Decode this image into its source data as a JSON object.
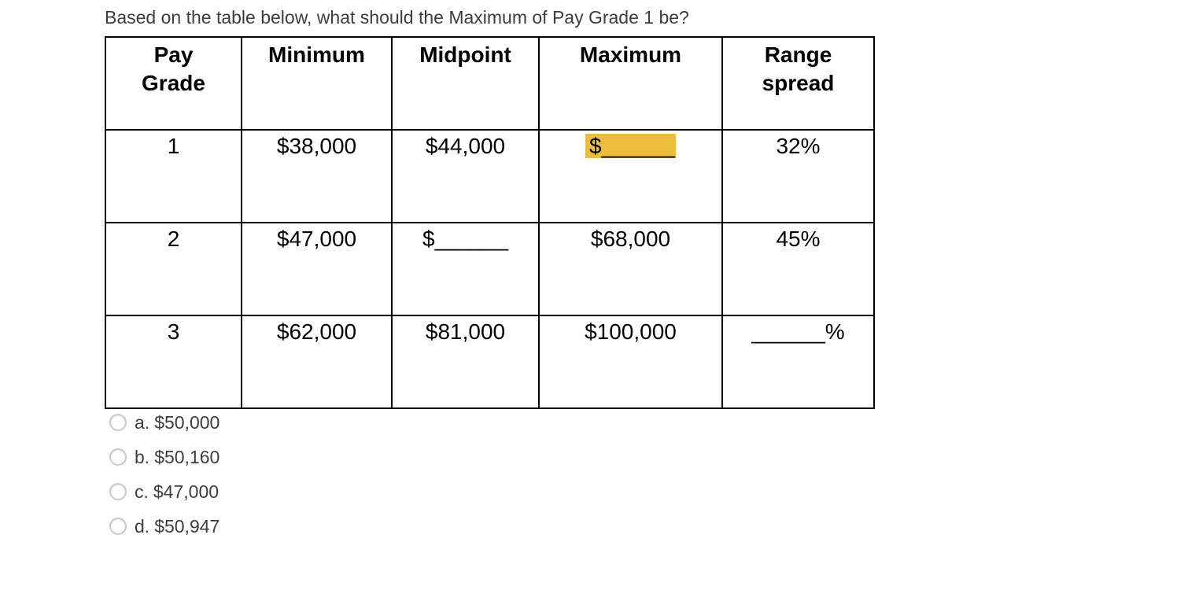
{
  "colors": {
    "highlight": "#edbe3c",
    "text_muted": "#3d3d3d",
    "table_text": "#000000"
  },
  "question": {
    "text": "Based on the table below, what should the Maximum of Pay Grade 1 be?"
  },
  "table": {
    "headers": [
      "Pay\nGrade",
      "Minimum",
      "Midpoint",
      "Maximum",
      "Range\nspread"
    ],
    "rows": [
      {
        "grade": "1",
        "minimum": "$38,000",
        "midpoint": "$44,000",
        "maximum": {
          "prefix": "$",
          "blank": "______"
        },
        "range_spread": "32%"
      },
      {
        "grade": "2",
        "minimum": "$47,000",
        "midpoint": {
          "prefix": "$",
          "blank": "______"
        },
        "maximum": "$68,000",
        "range_spread": "45%"
      },
      {
        "grade": "3",
        "minimum": "$62,000",
        "midpoint": "$81,000",
        "maximum": "$100,000",
        "range_spread": {
          "blank": "______",
          "suffix": "%"
        }
      }
    ]
  },
  "options": [
    {
      "letter": "a.",
      "label": "$50,000"
    },
    {
      "letter": "b.",
      "label": "$50,160"
    },
    {
      "letter": "c.",
      "label": "$47,000"
    },
    {
      "letter": "d.",
      "label": "$50,947"
    }
  ]
}
